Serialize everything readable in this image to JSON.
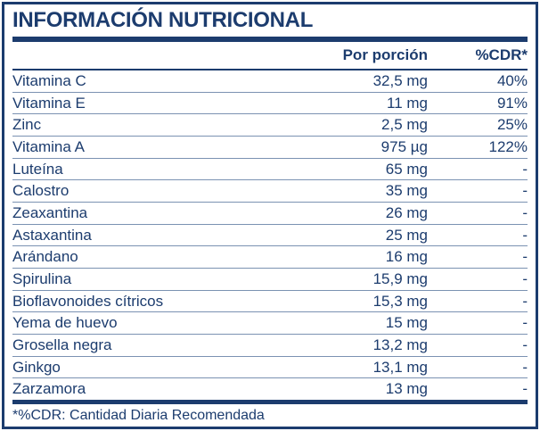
{
  "title": "INFORMACIÓN NUTRICIONAL",
  "table": {
    "headers": {
      "value_col": "Por porción",
      "cdr_col": "%CDR*"
    },
    "rows": [
      {
        "name": "Vitamina C",
        "value": "32,5 mg",
        "cdr": "40%"
      },
      {
        "name": "Vitamina E",
        "value": "11 mg",
        "cdr": "91%"
      },
      {
        "name": "Zinc",
        "value": "2,5 mg",
        "cdr": "25%"
      },
      {
        "name": "Vitamina A",
        "value": "975 µg",
        "cdr": "122%"
      },
      {
        "name": "Luteína",
        "value": "65 mg",
        "cdr": "-"
      },
      {
        "name": "Calostro",
        "value": "35 mg",
        "cdr": "-"
      },
      {
        "name": "Zeaxantina",
        "value": "26 mg",
        "cdr": "-"
      },
      {
        "name": "Astaxantina",
        "value": "25 mg",
        "cdr": "-"
      },
      {
        "name": "Arándano",
        "value": "16 mg",
        "cdr": "-"
      },
      {
        "name": "Spirulina",
        "value": "15,9 mg",
        "cdr": "-"
      },
      {
        "name": "Bioflavonoides cítricos",
        "value": "15,3 mg",
        "cdr": "-"
      },
      {
        "name": "Yema de huevo",
        "value": "15 mg",
        "cdr": "-"
      },
      {
        "name": "Grosella negra",
        "value": "13,2 mg",
        "cdr": "-"
      },
      {
        "name": "Ginkgo",
        "value": "13,1 mg",
        "cdr": "-"
      },
      {
        "name": "Zarzamora",
        "value": "13 mg",
        "cdr": "-"
      }
    ]
  },
  "footnote": "*%CDR: Cantidad Diaria Recomendada",
  "colors": {
    "navy": "#1c3c6e",
    "row_line": "#7b92b2",
    "background": "#ffffff"
  }
}
